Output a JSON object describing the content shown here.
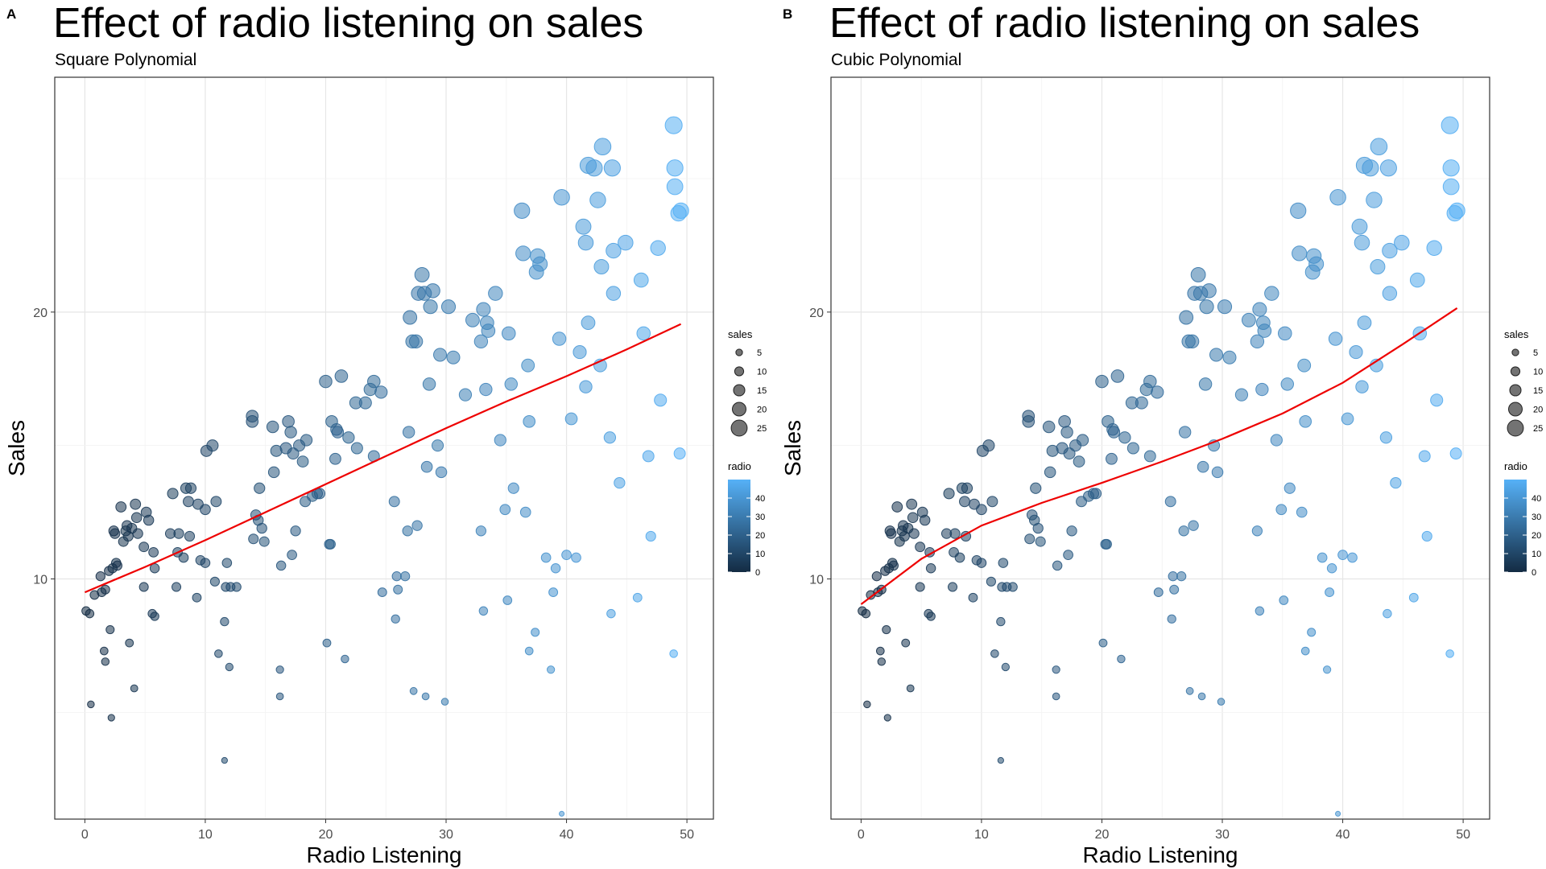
{
  "panels": [
    {
      "tag": "A",
      "title": "Effect of radio listening on sales",
      "subtitle": "Square Polynomial"
    },
    {
      "tag": "B",
      "title": "Effect of radio listening on sales",
      "subtitle": "Cubic Polynomial"
    }
  ],
  "chart_data": [
    {
      "type": "scatter",
      "title": "Effect of radio listening on sales",
      "subtitle": "Square Polynomial",
      "xlabel": "Radio Listening",
      "ylabel": "Sales",
      "xlim": [
        -2.5,
        52.2
      ],
      "ylim": [
        1.0,
        28.8
      ],
      "x_ticks": [
        0,
        10,
        20,
        30,
        40,
        50
      ],
      "y_ticks": [
        10,
        20
      ],
      "grid": true,
      "legend": {
        "position": "right",
        "size_title": "sales",
        "size_levels": [
          5,
          10,
          15,
          20,
          25
        ],
        "color_title": "radio",
        "color_ticks": [
          0,
          10,
          20,
          30,
          40
        ],
        "color_low": "#132B43",
        "color_high": "#56B1F7"
      },
      "points": [
        [
          0.1,
          8.8
        ],
        [
          0.4,
          8.7
        ],
        [
          0.5,
          5.3
        ],
        [
          0.8,
          9.4
        ],
        [
          1.3,
          10.1
        ],
        [
          1.4,
          9.5
        ],
        [
          1.6,
          7.3
        ],
        [
          1.7,
          6.9
        ],
        [
          1.7,
          9.6
        ],
        [
          2.0,
          10.3
        ],
        [
          2.1,
          8.1
        ],
        [
          2.2,
          4.8
        ],
        [
          2.3,
          10.4
        ],
        [
          2.4,
          11.8
        ],
        [
          2.5,
          11.7
        ],
        [
          2.6,
          10.6
        ],
        [
          2.7,
          10.5
        ],
        [
          3.0,
          12.7
        ],
        [
          3.2,
          11.4
        ],
        [
          3.4,
          11.8
        ],
        [
          3.5,
          12.0
        ],
        [
          3.6,
          11.6
        ],
        [
          3.7,
          7.6
        ],
        [
          3.9,
          11.9
        ],
        [
          4.1,
          5.9
        ],
        [
          4.2,
          12.8
        ],
        [
          4.3,
          12.3
        ],
        [
          4.4,
          11.7
        ],
        [
          4.9,
          9.7
        ],
        [
          4.9,
          11.2
        ],
        [
          5.1,
          12.5
        ],
        [
          5.3,
          12.2
        ],
        [
          5.6,
          8.7
        ],
        [
          5.7,
          11.0
        ],
        [
          5.8,
          8.6
        ],
        [
          5.8,
          10.4
        ],
        [
          7.1,
          11.7
        ],
        [
          7.3,
          13.2
        ],
        [
          7.6,
          9.7
        ],
        [
          7.7,
          11.0
        ],
        [
          7.8,
          11.7
        ],
        [
          8.2,
          10.8
        ],
        [
          8.4,
          13.4
        ],
        [
          8.6,
          12.9
        ],
        [
          8.7,
          11.6
        ],
        [
          8.8,
          13.4
        ],
        [
          9.3,
          9.3
        ],
        [
          9.4,
          12.8
        ],
        [
          9.6,
          10.7
        ],
        [
          10.0,
          10.6
        ],
        [
          10.0,
          12.6
        ],
        [
          10.1,
          14.8
        ],
        [
          10.6,
          15.0
        ],
        [
          10.8,
          9.9
        ],
        [
          10.9,
          12.9
        ],
        [
          11.1,
          7.2
        ],
        [
          11.6,
          8.4
        ],
        [
          11.6,
          3.2
        ],
        [
          11.7,
          9.7
        ],
        [
          11.8,
          10.6
        ],
        [
          12.0,
          6.7
        ],
        [
          12.1,
          9.7
        ],
        [
          12.6,
          9.7
        ],
        [
          13.9,
          16.1
        ],
        [
          13.9,
          15.9
        ],
        [
          14.0,
          11.5
        ],
        [
          14.2,
          12.4
        ],
        [
          14.4,
          12.2
        ],
        [
          14.5,
          13.4
        ],
        [
          14.7,
          11.9
        ],
        [
          14.9,
          11.4
        ],
        [
          15.6,
          15.7
        ],
        [
          15.7,
          14.0
        ],
        [
          15.9,
          14.8
        ],
        [
          16.2,
          6.6
        ],
        [
          16.2,
          5.6
        ],
        [
          16.3,
          10.5
        ],
        [
          16.7,
          14.9
        ],
        [
          16.9,
          15.9
        ],
        [
          17.1,
          15.5
        ],
        [
          17.2,
          10.9
        ],
        [
          17.3,
          14.7
        ],
        [
          17.5,
          11.8
        ],
        [
          17.8,
          15.0
        ],
        [
          18.1,
          14.4
        ],
        [
          18.3,
          12.9
        ],
        [
          18.4,
          15.2
        ],
        [
          18.9,
          13.1
        ],
        [
          19.3,
          13.2
        ],
        [
          19.5,
          13.2
        ],
        [
          20.0,
          17.4
        ],
        [
          20.1,
          7.6
        ],
        [
          20.3,
          11.3
        ],
        [
          20.4,
          11.3
        ],
        [
          20.5,
          15.9
        ],
        [
          20.8,
          14.5
        ],
        [
          20.9,
          15.6
        ],
        [
          21.0,
          15.5
        ],
        [
          21.3,
          17.6
        ],
        [
          21.6,
          7.0
        ],
        [
          21.9,
          15.3
        ],
        [
          22.5,
          16.6
        ],
        [
          22.6,
          14.9
        ],
        [
          23.3,
          16.6
        ],
        [
          23.7,
          17.1
        ],
        [
          24.0,
          17.4
        ],
        [
          24.0,
          14.6
        ],
        [
          24.6,
          17.0
        ],
        [
          24.7,
          9.5
        ],
        [
          25.7,
          12.9
        ],
        [
          25.8,
          8.5
        ],
        [
          25.9,
          10.1
        ],
        [
          26.0,
          9.6
        ],
        [
          26.6,
          10.1
        ],
        [
          26.8,
          11.8
        ],
        [
          26.9,
          15.5
        ],
        [
          27.0,
          19.8
        ],
        [
          27.2,
          18.9
        ],
        [
          27.3,
          5.8
        ],
        [
          27.5,
          18.9
        ],
        [
          27.6,
          12.0
        ],
        [
          27.7,
          20.7
        ],
        [
          28.0,
          21.4
        ],
        [
          28.2,
          20.7
        ],
        [
          28.3,
          5.6
        ],
        [
          28.4,
          14.2
        ],
        [
          28.6,
          17.3
        ],
        [
          28.7,
          20.2
        ],
        [
          28.9,
          20.8
        ],
        [
          29.3,
          15.0
        ],
        [
          29.5,
          18.4
        ],
        [
          29.6,
          14.0
        ],
        [
          29.9,
          5.4
        ],
        [
          30.2,
          20.2
        ],
        [
          30.6,
          18.3
        ],
        [
          31.6,
          16.9
        ],
        [
          32.2,
          19.7
        ],
        [
          32.9,
          11.8
        ],
        [
          32.9,
          18.9
        ],
        [
          33.1,
          20.1
        ],
        [
          33.1,
          8.8
        ],
        [
          33.3,
          17.1
        ],
        [
          33.4,
          19.6
        ],
        [
          33.5,
          19.3
        ],
        [
          34.1,
          20.7
        ],
        [
          34.5,
          15.2
        ],
        [
          34.9,
          12.6
        ],
        [
          35.1,
          9.2
        ],
        [
          35.2,
          19.2
        ],
        [
          35.4,
          17.3
        ],
        [
          35.6,
          13.4
        ],
        [
          36.3,
          23.8
        ],
        [
          36.4,
          22.2
        ],
        [
          36.6,
          12.5
        ],
        [
          36.8,
          18.0
        ],
        [
          36.9,
          15.9
        ],
        [
          36.9,
          7.3
        ],
        [
          37.4,
          8.0
        ],
        [
          37.5,
          21.5
        ],
        [
          37.6,
          22.1
        ],
        [
          37.8,
          21.8
        ],
        [
          38.3,
          10.8
        ],
        [
          38.7,
          6.6
        ],
        [
          38.9,
          9.5
        ],
        [
          39.1,
          10.4
        ],
        [
          39.4,
          19.0
        ],
        [
          39.6,
          24.3
        ],
        [
          39.6,
          1.2
        ],
        [
          40.0,
          10.9
        ],
        [
          40.4,
          16.0
        ],
        [
          40.8,
          10.8
        ],
        [
          41.1,
          18.5
        ],
        [
          41.4,
          23.2
        ],
        [
          41.6,
          22.6
        ],
        [
          41.6,
          17.2
        ],
        [
          41.8,
          25.5
        ],
        [
          41.8,
          19.6
        ],
        [
          42.3,
          25.4
        ],
        [
          42.6,
          24.2
        ],
        [
          42.8,
          18.0
        ],
        [
          42.9,
          21.7
        ],
        [
          43.0,
          26.2
        ],
        [
          43.6,
          15.3
        ],
        [
          43.7,
          8.7
        ],
        [
          43.8,
          25.4
        ],
        [
          43.9,
          20.7
        ],
        [
          43.9,
          22.3
        ],
        [
          44.4,
          13.6
        ],
        [
          44.9,
          22.6
        ],
        [
          45.9,
          9.3
        ],
        [
          46.2,
          21.2
        ],
        [
          46.4,
          19.2
        ],
        [
          46.8,
          14.6
        ],
        [
          47.0,
          11.6
        ],
        [
          47.6,
          22.4
        ],
        [
          47.8,
          16.7
        ],
        [
          48.9,
          27.0
        ],
        [
          48.9,
          7.2
        ],
        [
          49.0,
          25.4
        ],
        [
          49.0,
          24.7
        ],
        [
          49.3,
          23.7
        ],
        [
          49.4,
          14.7
        ],
        [
          49.5,
          23.8
        ]
      ],
      "sales_size_ref": "y",
      "fit_line": {
        "x": [
          0,
          5,
          10,
          15,
          20,
          25,
          30,
          35,
          40,
          45,
          49.5
        ],
        "y": [
          9.5,
          10.45,
          11.45,
          12.5,
          13.55,
          14.6,
          15.65,
          16.65,
          17.6,
          18.6,
          19.55
        ],
        "color": "#ee0000"
      }
    },
    {
      "type": "scatter",
      "title": "Effect of radio listening on sales",
      "subtitle": "Cubic Polynomial",
      "xlabel": "Radio Listening",
      "ylabel": "Sales",
      "xlim": [
        -2.5,
        52.2
      ],
      "ylim": [
        1.0,
        28.8
      ],
      "x_ticks": [
        0,
        10,
        20,
        30,
        40,
        50
      ],
      "y_ticks": [
        10,
        20
      ],
      "grid": true,
      "legend": {
        "position": "right",
        "size_title": "sales",
        "size_levels": [
          5,
          10,
          15,
          20,
          25
        ],
        "color_title": "radio",
        "color_ticks": [
          0,
          10,
          20,
          30,
          40
        ],
        "color_low": "#132B43",
        "color_high": "#56B1F7"
      },
      "points_same_as_panel": 0,
      "fit_line": {
        "x": [
          0,
          5,
          10,
          15,
          20,
          25,
          30,
          35,
          40,
          45,
          49.5
        ],
        "y": [
          9.05,
          10.75,
          12.0,
          12.85,
          13.6,
          14.4,
          15.25,
          16.2,
          17.35,
          18.8,
          20.15
        ],
        "color": "#ee0000"
      }
    }
  ]
}
